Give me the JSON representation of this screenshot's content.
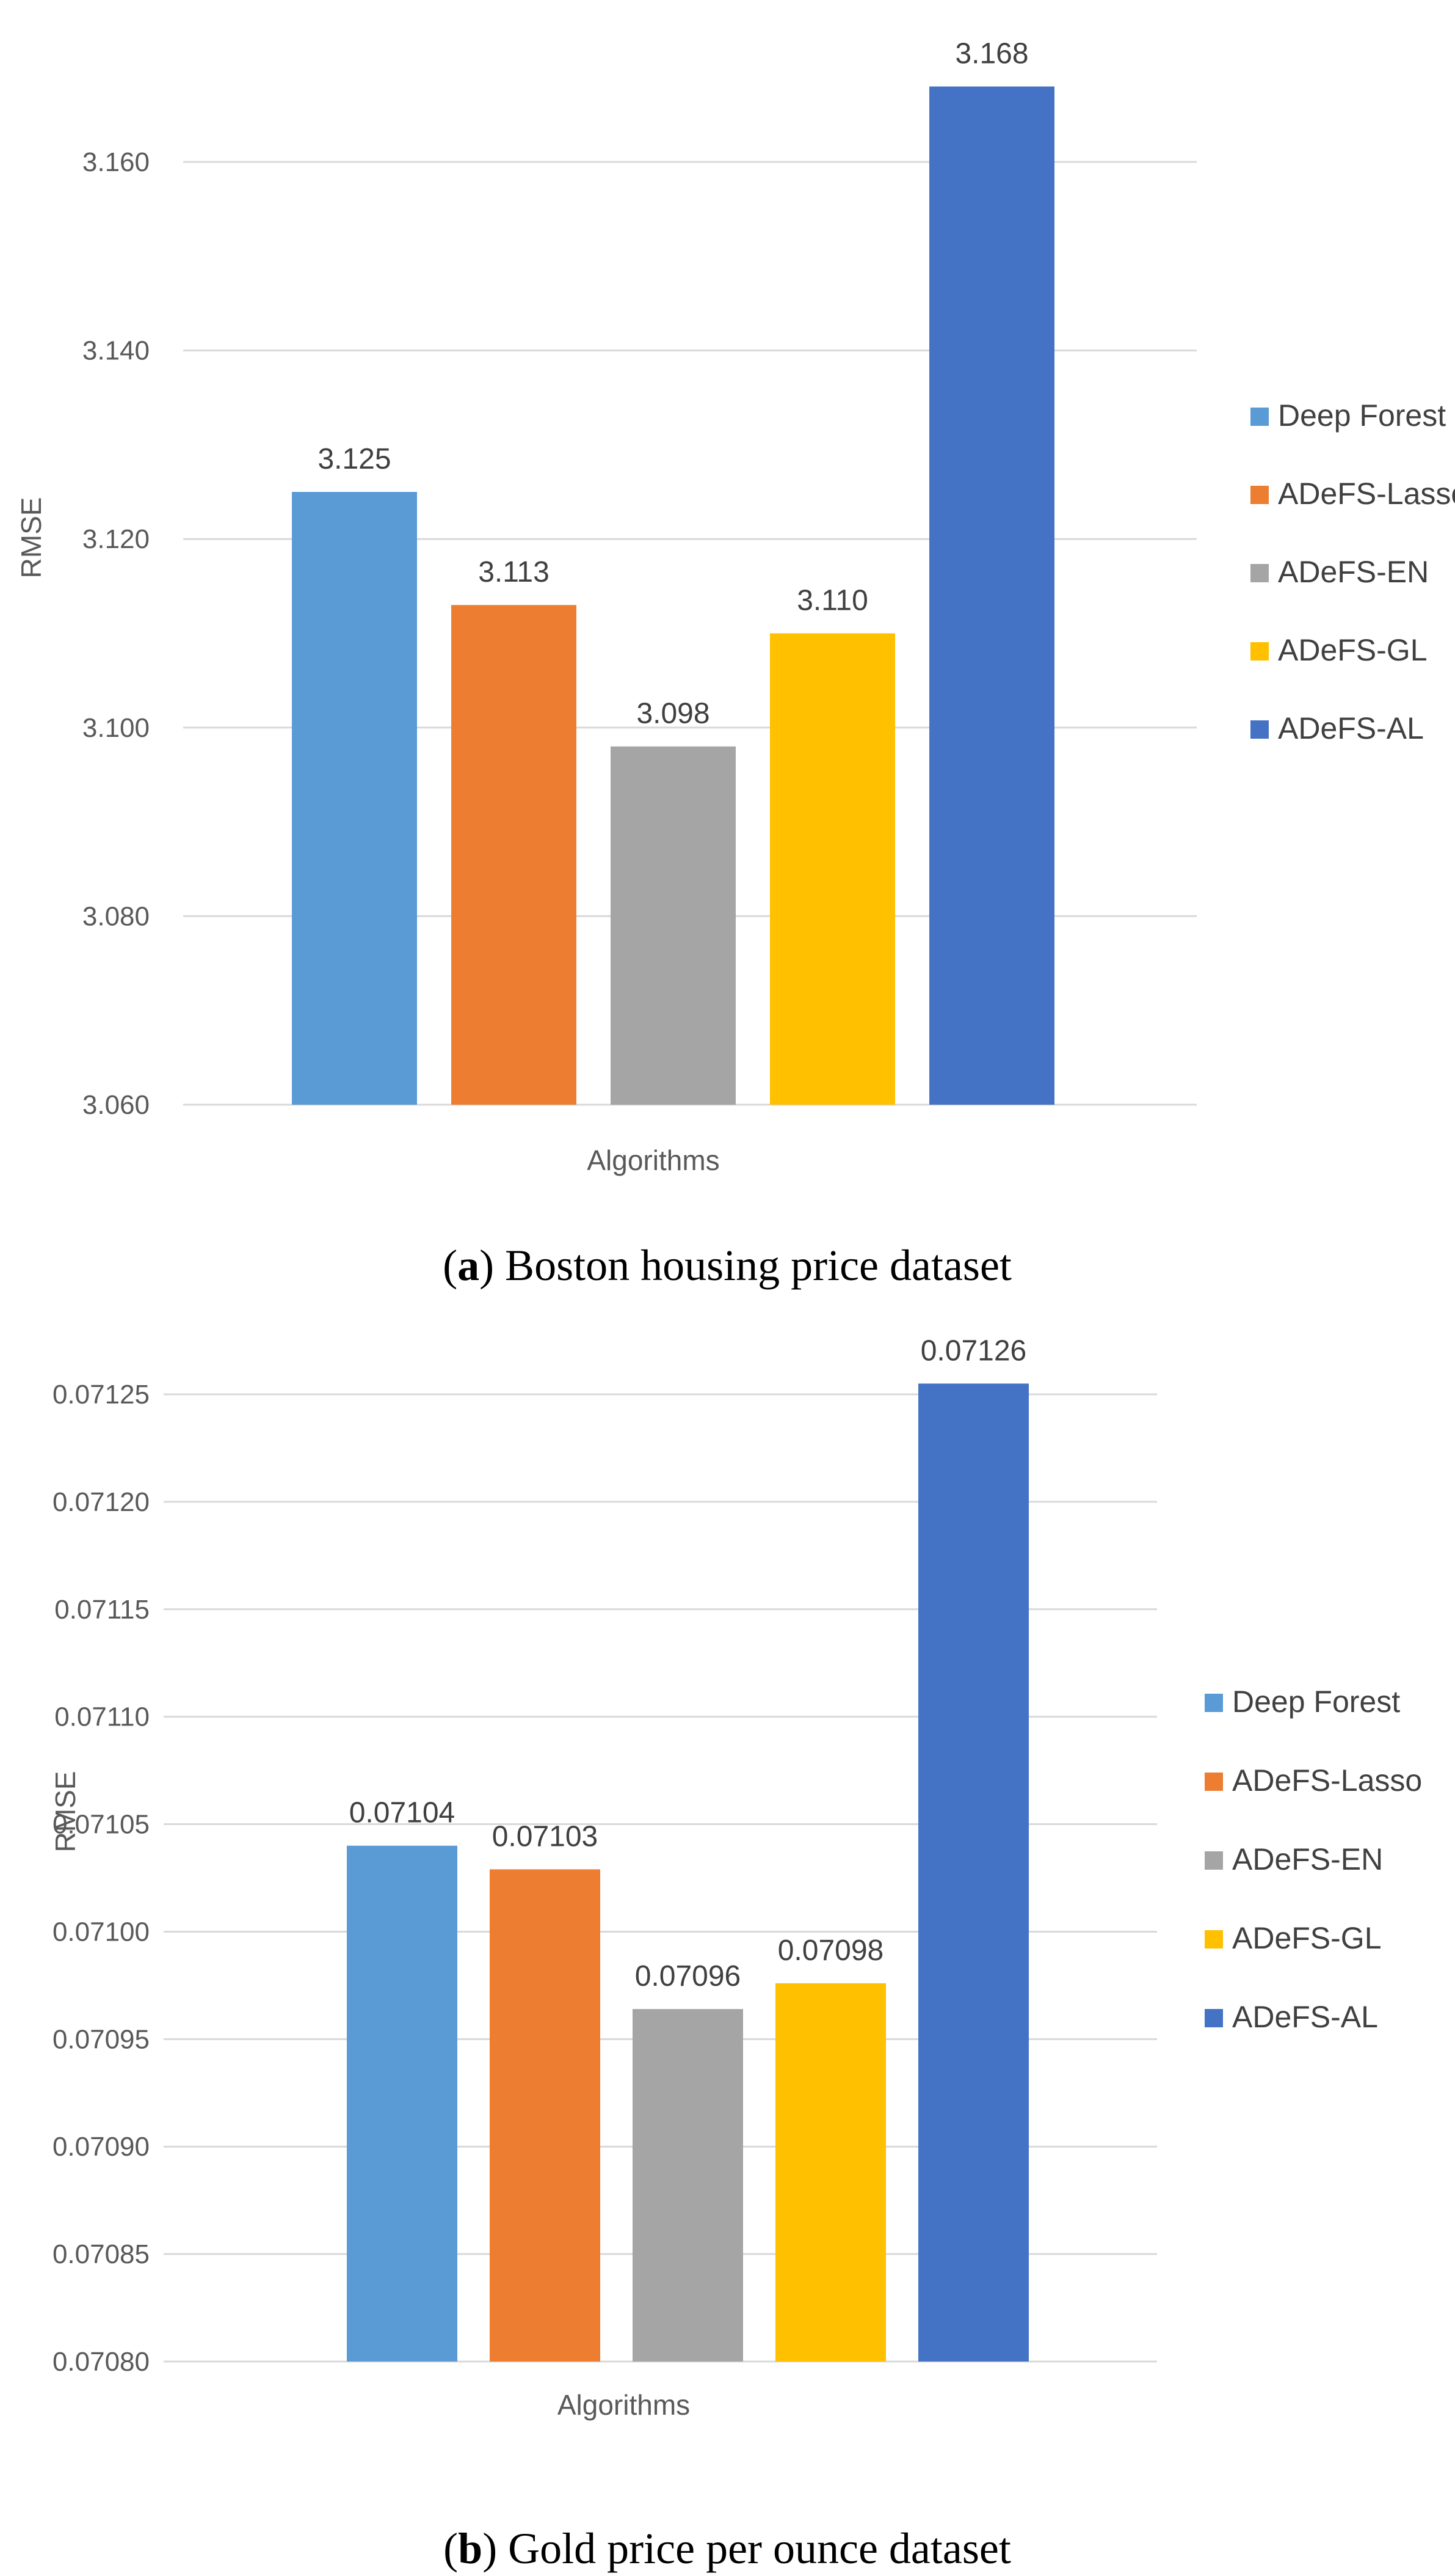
{
  "colors": {
    "Deep Forest": "#5B9BD5",
    "ADeFS-Lasso": "#ED7D31",
    "ADeFS-EN": "#A5A5A5",
    "ADeFS-GL": "#FFC000",
    "ADeFS-AL": "#4472C4",
    "grid": "#D9D9D9"
  },
  "chart_data": [
    {
      "type": "bar",
      "ylabel": "RMSE",
      "xlabel": "Algorithms",
      "ylim": [
        3.06,
        3.17
      ],
      "yticks": [
        "3.060",
        "3.080",
        "3.100",
        "3.120",
        "3.140",
        "3.160"
      ],
      "ytick_values": [
        3.06,
        3.08,
        3.1,
        3.12,
        3.14,
        3.16
      ],
      "series": [
        {
          "name": "Deep Forest",
          "value": 3.125,
          "label": "3.125"
        },
        {
          "name": "ADeFS-Lasso",
          "value": 3.113,
          "label": "3.113"
        },
        {
          "name": "ADeFS-EN",
          "value": 3.098,
          "label": "3.098"
        },
        {
          "name": "ADeFS-GL",
          "value": 3.11,
          "label": "3.110"
        },
        {
          "name": "ADeFS-AL",
          "value": 3.168,
          "label": "3.168"
        }
      ],
      "legend_position": "right",
      "caption_letter": "a",
      "caption_text": " Boston housing price dataset"
    },
    {
      "type": "bar",
      "ylabel": "RMSE",
      "xlabel": "Algorithms",
      "ylim": [
        0.0708,
        0.07125
      ],
      "yticks": [
        "0.07080",
        "0.07085",
        "0.07090",
        "0.07095",
        "0.07100",
        "0.07105",
        "0.07110",
        "0.07115",
        "0.07120",
        "0.07125"
      ],
      "ytick_values": [
        0.0708,
        0.07085,
        0.0709,
        0.07095,
        0.071,
        0.07105,
        0.0711,
        0.07115,
        0.0712,
        0.07125
      ],
      "series": [
        {
          "name": "Deep Forest",
          "value": 0.07104,
          "label": "0.07104"
        },
        {
          "name": "ADeFS-Lasso",
          "value": 0.071029,
          "label": "0.07103"
        },
        {
          "name": "ADeFS-EN",
          "value": 0.070964,
          "label": "0.07096"
        },
        {
          "name": "ADeFS-GL",
          "value": 0.070976,
          "label": "0.07098"
        },
        {
          "name": "ADeFS-AL",
          "value": 0.071255,
          "label": "0.07126"
        }
      ],
      "legend_position": "right",
      "caption_letter": "b",
      "caption_text": " Gold price per ounce dataset"
    }
  ]
}
